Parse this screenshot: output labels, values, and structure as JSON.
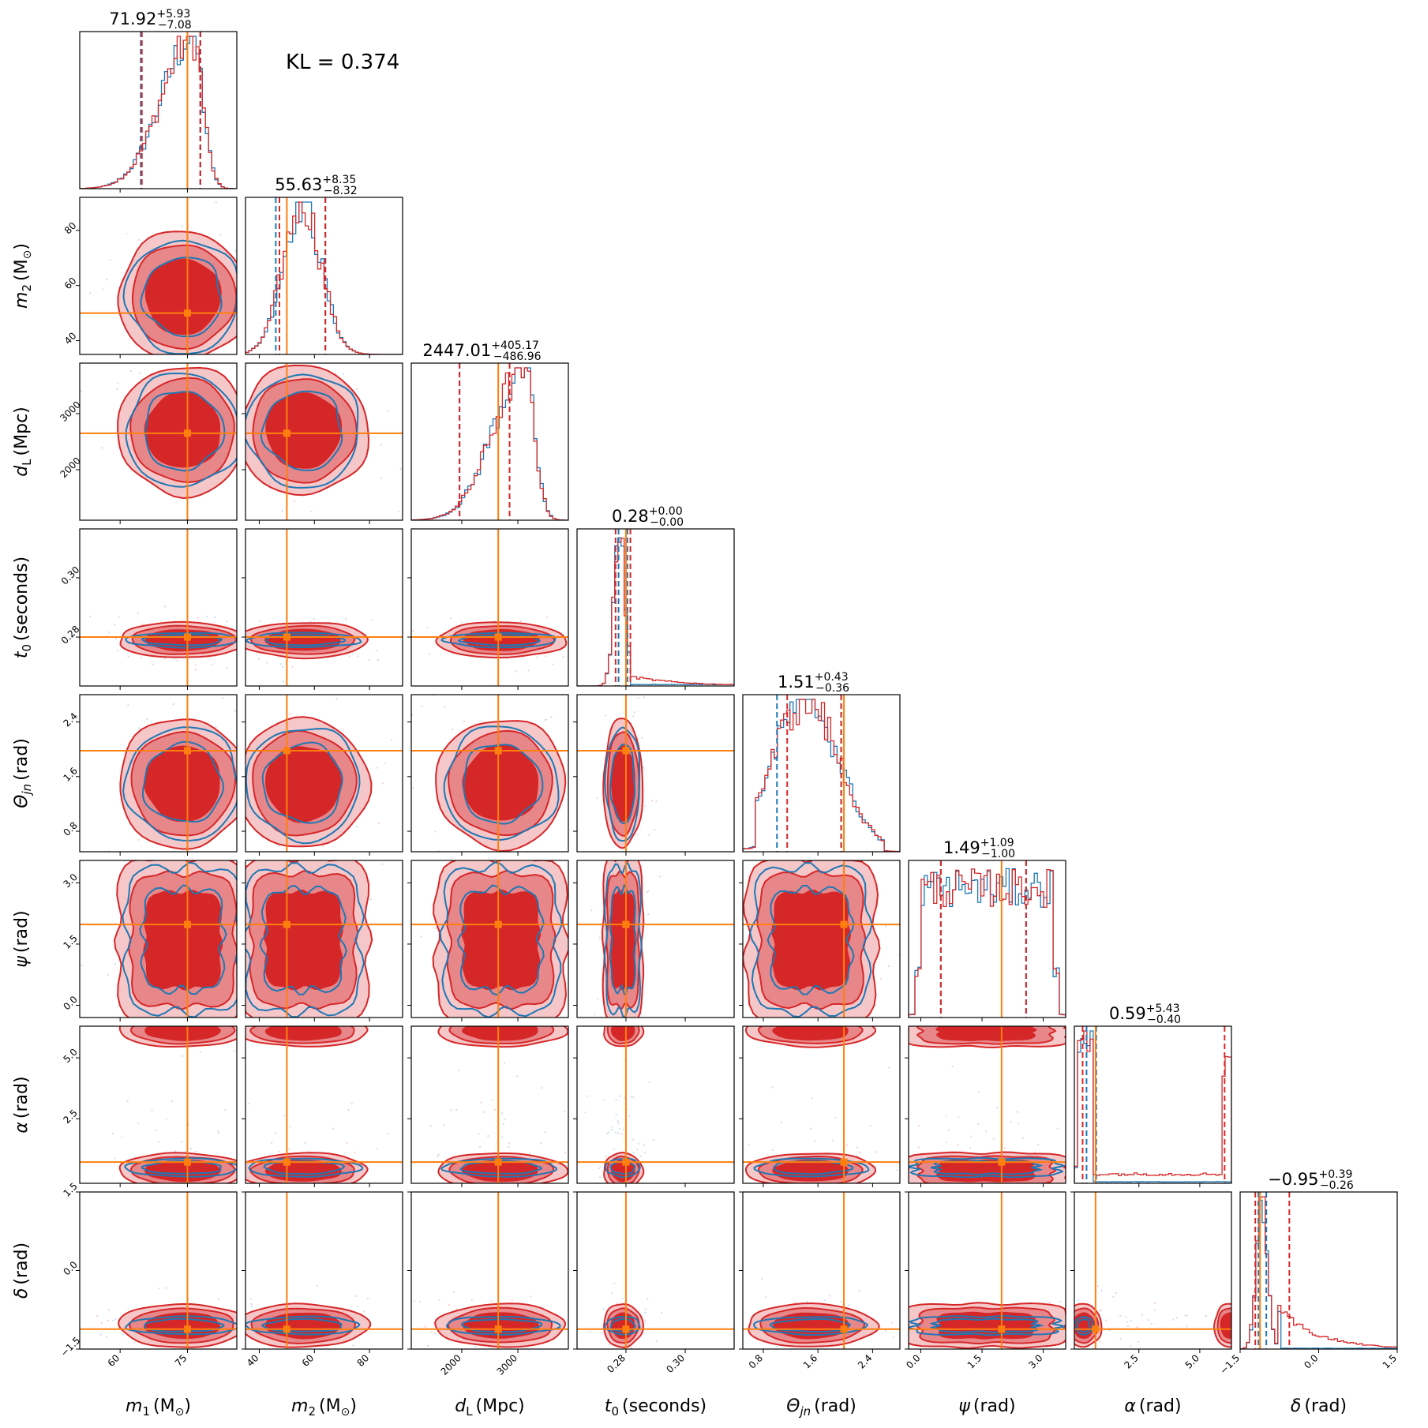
{
  "annotation": {
    "kl": "KL = 0.374"
  },
  "colors": {
    "model_a": "#d62728",
    "model_b": "#1f77b4",
    "truth": "#ff7f0e",
    "fill_inner": "#d62728",
    "fill_mid": "#e8878a",
    "fill_outer": "#f5c7c9"
  },
  "chart_data": {
    "type": "corner",
    "series": [
      {
        "name": "",
        "color": "#d62728",
        "style": "filled contours / step histogram"
      },
      {
        "name": "",
        "color": "#1f77b4",
        "style": "line contours / step histogram"
      }
    ],
    "parameters": [
      {
        "key": "m1",
        "label_main": "m",
        "label_sub": "1",
        "label_unit": "(M",
        "label_unit_sub": "⊙",
        "label_close": ")",
        "range": [
          51,
          86
        ],
        "ticks": [
          60,
          75
        ],
        "tick_labels": [
          "60",
          "75"
        ],
        "truth": 75,
        "median": 71.92,
        "plus": "+5.93",
        "minus": "−7.08",
        "title_value": "71.92",
        "q_lo": 64.84,
        "q_hi": 77.85,
        "q_lo_b": 64.6,
        "q_hi_b": 77.9,
        "hist_shape": "left-skew",
        "center": 74
      },
      {
        "key": "m2",
        "label_main": "m",
        "label_sub": "2",
        "label_unit": "(M",
        "label_unit_sub": "⊙",
        "label_close": ")",
        "range": [
          35,
          92
        ],
        "ticks": [
          40,
          60,
          80
        ],
        "tick_labels": [
          "40",
          "60",
          "80"
        ],
        "truth": 50,
        "median": 55.63,
        "plus": "+8.35",
        "minus": "−8.32",
        "title_value": "55.63",
        "q_lo": 47.31,
        "q_hi": 63.98,
        "q_lo_b": 46.0,
        "q_hi_b": 63.98,
        "hist_shape": "normal",
        "center": 56
      },
      {
        "key": "dL",
        "label_main": "d",
        "label_sub": "L",
        "label_unit": "(Mpc",
        "label_unit_sub": "",
        "label_close": ")",
        "range": [
          1100,
          3900
        ],
        "ticks": [
          2000,
          3000
        ],
        "tick_labels": [
          "2000",
          "3000"
        ],
        "truth": 2650,
        "median": 2447.01,
        "plus": "+405.17",
        "minus": "−486.96",
        "title_value": "2447.01",
        "q_lo": 1960.05,
        "q_hi": 2852.18,
        "q_lo_b": 1960.05,
        "q_hi_b": 2852.18,
        "hist_shape": "left-skew",
        "center": 2700
      },
      {
        "key": "t0",
        "label_main": "t",
        "label_sub": "0",
        "label_unit": "(seconds",
        "label_unit_sub": "",
        "label_close": ")",
        "range": [
          0.2635,
          0.3165
        ],
        "ticks": [
          0.28,
          0.3
        ],
        "tick_labels": [
          "0.28",
          "0.30"
        ],
        "truth": 0.28,
        "median": 0.28,
        "plus": "+0.00",
        "minus": "−0.00",
        "title_value": "0.28",
        "q_lo": 0.2765,
        "q_hi": 0.2815,
        "q_lo_b": 0.2775,
        "q_hi_b": 0.2805,
        "hist_shape": "spike",
        "center": 0.279
      },
      {
        "key": "theta_jn",
        "label_main": "Θ",
        "label_sub": "jn",
        "label_unit": "(rad",
        "label_unit_sub": "",
        "label_close": ")",
        "range": [
          0.5,
          2.8
        ],
        "ticks": [
          0.8,
          1.6,
          2.4
        ],
        "tick_labels": [
          "0.8",
          "1.6",
          "2.4"
        ],
        "truth": 1.98,
        "median": 1.51,
        "plus": "+0.43",
        "minus": "−0.36",
        "title_value": "1.51",
        "q_lo": 1.15,
        "q_hi": 1.94,
        "q_lo_b": 1.0,
        "q_hi_b": 1.94,
        "hist_shape": "broad",
        "center": 1.5
      },
      {
        "key": "psi",
        "label_main": "ψ",
        "label_sub": "",
        "label_unit": "(rad",
        "label_unit_sub": "",
        "label_close": ")",
        "range": [
          -0.3,
          3.55
        ],
        "ticks": [
          0.0,
          1.5,
          3.0
        ],
        "tick_labels": [
          "0.0",
          "1.5",
          "3.0"
        ],
        "truth": 1.98,
        "median": 1.49,
        "plus": "+1.09",
        "minus": "−1.00",
        "title_value": "1.49",
        "q_lo": 0.49,
        "q_hi": 2.58,
        "q_lo_b": 0.49,
        "q_hi_b": 2.58,
        "hist_shape": "flat",
        "center": 1.6
      },
      {
        "key": "alpha",
        "label_main": "α",
        "label_sub": "",
        "label_unit": "(rad",
        "label_unit_sub": "",
        "label_close": ")",
        "range": [
          -0.15,
          6.3
        ],
        "ticks": [
          2.5,
          5.0
        ],
        "tick_labels": [
          "2.5",
          "5.0"
        ],
        "truth": 0.72,
        "median": 0.59,
        "plus": "+5.43",
        "minus": "−0.40",
        "title_value": "0.59",
        "q_lo": 0.19,
        "q_hi": 6.02,
        "q_lo_b": 0.35,
        "q_hi_b": 0.75,
        "hist_shape": "bimodal-edge",
        "center": 0.5
      },
      {
        "key": "delta",
        "label_main": "δ",
        "label_sub": "",
        "label_unit": "(rad",
        "label_unit_sub": "",
        "label_close": ")",
        "range": [
          -1.5,
          1.5
        ],
        "ticks": [
          -1.5,
          0.0,
          1.5
        ],
        "tick_labels": [
          "−1.5",
          "0.0",
          "1.5"
        ],
        "truth": -1.12,
        "median": -0.95,
        "plus": "+0.39",
        "minus": "−0.26",
        "title_value": "−0.95",
        "q_lo": -1.21,
        "q_hi": -0.56,
        "q_lo_b": -1.15,
        "q_hi_b": -1.0,
        "hist_shape": "right-tail",
        "center": -1.05
      }
    ],
    "kl_divergence": 0.374,
    "grid": false,
    "legend": "none"
  }
}
